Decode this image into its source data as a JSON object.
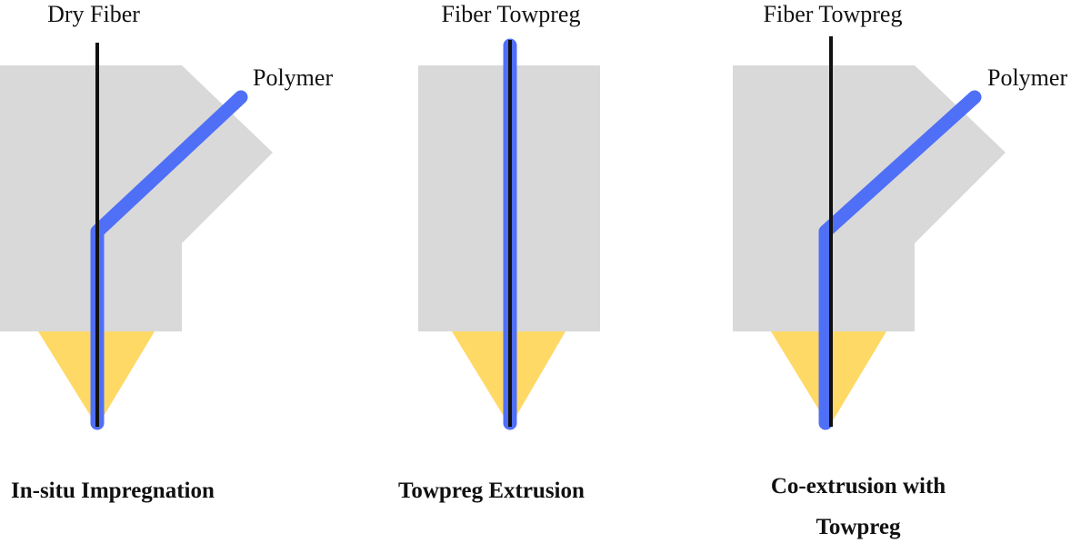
{
  "panels": [
    {
      "top_label": "Dry Fiber",
      "side_label": "Polymer",
      "caption_lines": [
        "In-situ Impregnation"
      ]
    },
    {
      "top_label": "Fiber Towpreg",
      "caption_lines": [
        "Towpreg Extrusion"
      ]
    },
    {
      "top_label": "Fiber Towpreg",
      "side_label": "Polymer",
      "caption_lines": [
        "Co-extrusion with",
        "Towpreg"
      ]
    }
  ]
}
